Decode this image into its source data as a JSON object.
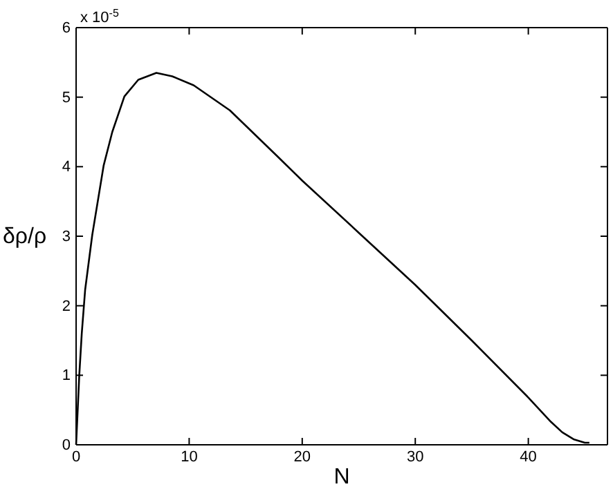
{
  "chart_data": {
    "type": "line",
    "xlabel": "N",
    "ylabel": "δρ/ρ",
    "annotations": [
      "x 10$^{-5}$"
    ],
    "x": [
      0,
      0.28,
      0.5,
      0.8,
      1.43,
      2.44,
      3.2,
      4.27,
      5.5,
      7.1,
      8.5,
      10.4,
      13.6,
      17.8,
      20,
      25,
      30,
      35,
      40,
      42,
      43,
      44,
      45,
      45.4
    ],
    "series": [
      {
        "color": "#000000",
        "values": [
          0,
          1.0,
          1.6,
          2.23,
          3.02,
          4.02,
          4.5,
          5.01,
          5.25,
          5.35,
          5.3,
          5.17,
          4.81,
          4.15,
          3.8,
          3.05,
          2.3,
          1.5,
          0.68,
          0.33,
          0.18,
          0.08,
          0.03,
          0.03
        ]
      }
    ],
    "xlim": [
      0,
      47
    ],
    "xticks": [
      0,
      10,
      20,
      30,
      40
    ],
    "ylim": [
      0,
      6
    ],
    "yticks": [
      0,
      1,
      2,
      3,
      4,
      5,
      6
    ],
    "grid": false,
    "marker": "none",
    "line_style": "solid"
  }
}
